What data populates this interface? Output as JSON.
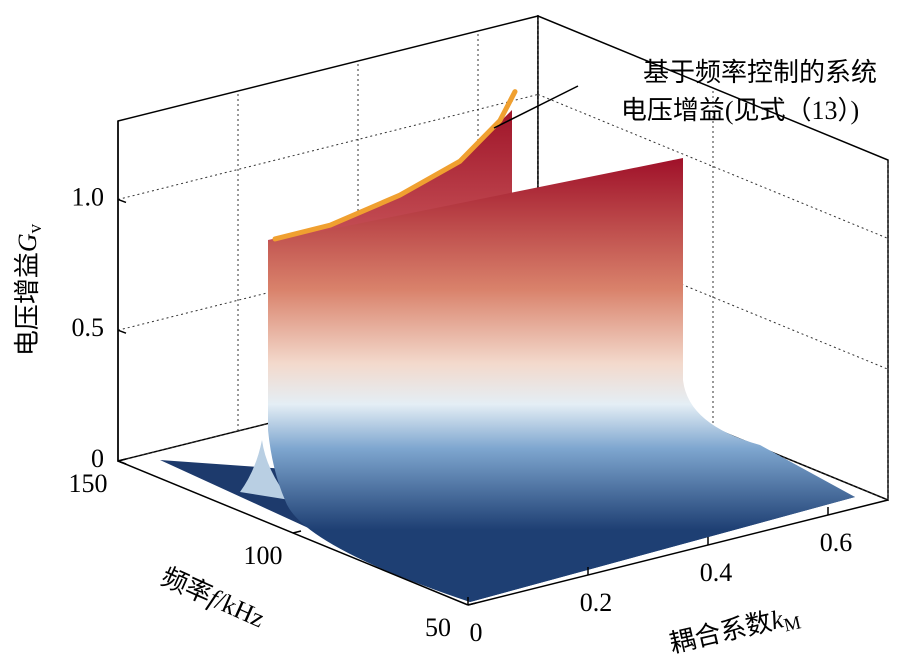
{
  "chart_data": {
    "type": "surface3d",
    "xlabel": {
      "text": "耦合系数",
      "var": "k",
      "sub": "M"
    },
    "ylabel": {
      "text": "频率",
      "var": "f",
      "unit": "/kHz"
    },
    "zlabel": {
      "text": "电压增益",
      "var": "G",
      "sub": "v"
    },
    "xlim": [
      0,
      0.7
    ],
    "xticks": [
      0,
      0.2,
      0.4,
      0.6
    ],
    "ylim": [
      50,
      150
    ],
    "yticks": [
      50,
      100,
      150
    ],
    "zlim": [
      0,
      1.3
    ],
    "zticks": [
      0,
      0.5,
      {
        "value": 1,
        "label": "1.0"
      }
    ],
    "grid": true,
    "series": [
      {
        "name": "基于频率控制的系统电压增益(见式（13）)",
        "color": "#f0a030",
        "x": [
          0.145,
          0.237,
          0.353,
          0.453,
          0.52,
          0.545
        ],
        "values": [
          0.876,
          0.876,
          0.924,
          0.996,
          1.114,
          1.21
        ]
      }
    ],
    "annotation": [
      "基于频率控制的系统",
      "电压增益(见式（13）)"
    ]
  }
}
